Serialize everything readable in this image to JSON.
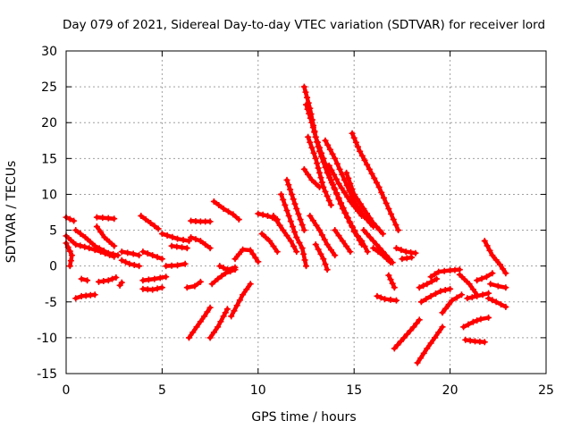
{
  "chart_data": {
    "type": "scatter",
    "title": "Day 079 of 2021, Sidereal Day-to-day VTEC variation (SDTVAR) for receiver lord",
    "xlabel": "GPS time / hours",
    "ylabel": "SDTVAR / TECUs",
    "xlim": [
      0,
      25
    ],
    "ylim": [
      -15,
      30
    ],
    "xticks": [
      "0",
      "5",
      "10",
      "15",
      "20",
      "25"
    ],
    "yticks": [
      "-15",
      "-10",
      "-5",
      "0",
      "5",
      "10",
      "15",
      "20",
      "25",
      "30"
    ],
    "grid": true,
    "marker": "+",
    "color": "#ff0000",
    "series": [
      {
        "name": "arc-01",
        "points": [
          [
            0.0,
            6.8
          ],
          [
            0.4,
            6.3
          ]
        ]
      },
      {
        "name": "arc-02",
        "points": [
          [
            0.0,
            4.2
          ],
          [
            0.5,
            3.0
          ],
          [
            1.2,
            2.5
          ],
          [
            1.8,
            2.0
          ],
          [
            2.5,
            1.3
          ]
        ]
      },
      {
        "name": "arc-03",
        "points": [
          [
            0.0,
            3.2
          ],
          [
            0.3,
            1.5
          ],
          [
            0.2,
            0.0
          ]
        ]
      },
      {
        "name": "arc-04",
        "points": [
          [
            0.5,
            5.0
          ],
          [
            1.0,
            4.0
          ],
          [
            1.5,
            2.8
          ],
          [
            2.2,
            1.8
          ],
          [
            2.7,
            1.5
          ]
        ]
      },
      {
        "name": "arc-05",
        "points": [
          [
            0.8,
            -1.8
          ],
          [
            1.1,
            -2.0
          ]
        ]
      },
      {
        "name": "arc-06",
        "points": [
          [
            0.5,
            -4.5
          ],
          [
            0.8,
            -4.2
          ],
          [
            1.5,
            -4.0
          ]
        ]
      },
      {
        "name": "arc-07",
        "points": [
          [
            1.6,
            6.8
          ],
          [
            2.5,
            6.6
          ]
        ]
      },
      {
        "name": "arc-08",
        "points": [
          [
            1.6,
            5.5
          ],
          [
            2.0,
            4.0
          ],
          [
            2.5,
            2.8
          ]
        ]
      },
      {
        "name": "arc-09",
        "points": [
          [
            1.7,
            -2.2
          ],
          [
            2.2,
            -2.0
          ],
          [
            2.6,
            -1.6
          ]
        ]
      },
      {
        "name": "arc-10",
        "points": [
          [
            2.9,
            2.0
          ],
          [
            3.5,
            1.7
          ],
          [
            3.8,
            1.5
          ]
        ]
      },
      {
        "name": "arc-11",
        "points": [
          [
            2.9,
            0.8
          ],
          [
            3.3,
            0.3
          ],
          [
            3.8,
            0.0
          ]
        ]
      },
      {
        "name": "arc-12",
        "points": [
          [
            2.8,
            -2.7
          ],
          [
            2.9,
            -2.3
          ]
        ]
      },
      {
        "name": "arc-13",
        "points": [
          [
            3.9,
            7.0
          ],
          [
            4.4,
            6.0
          ],
          [
            4.8,
            5.2
          ]
        ]
      },
      {
        "name": "arc-14",
        "points": [
          [
            4.0,
            2.0
          ],
          [
            4.5,
            1.5
          ],
          [
            5.0,
            1.0
          ]
        ]
      },
      {
        "name": "arc-15",
        "points": [
          [
            4.0,
            -2.0
          ],
          [
            4.6,
            -1.8
          ],
          [
            5.2,
            -1.5
          ]
        ]
      },
      {
        "name": "arc-16",
        "points": [
          [
            4.0,
            -3.2
          ],
          [
            4.5,
            -3.3
          ],
          [
            5.0,
            -3.0
          ]
        ]
      },
      {
        "name": "arc-17",
        "points": [
          [
            5.0,
            4.5
          ],
          [
            5.8,
            3.8
          ],
          [
            6.4,
            3.5
          ]
        ]
      },
      {
        "name": "arc-18",
        "points": [
          [
            5.5,
            2.8
          ],
          [
            6.3,
            2.5
          ]
        ]
      },
      {
        "name": "arc-19",
        "points": [
          [
            5.2,
            0.0
          ],
          [
            5.8,
            0.1
          ],
          [
            6.2,
            0.3
          ]
        ]
      },
      {
        "name": "arc-20",
        "points": [
          [
            6.3,
            -3.0
          ],
          [
            6.7,
            -2.8
          ],
          [
            7.0,
            -2.2
          ]
        ]
      },
      {
        "name": "arc-21",
        "points": [
          [
            6.4,
            -10.0
          ],
          [
            6.8,
            -8.5
          ],
          [
            7.2,
            -7.0
          ],
          [
            7.5,
            -5.8
          ]
        ]
      },
      {
        "name": "arc-22",
        "points": [
          [
            6.5,
            6.3
          ],
          [
            7.0,
            6.2
          ],
          [
            7.5,
            6.2
          ]
        ]
      },
      {
        "name": "arc-23",
        "points": [
          [
            6.5,
            4.0
          ],
          [
            7.0,
            3.5
          ],
          [
            7.5,
            2.5
          ]
        ]
      },
      {
        "name": "arc-24",
        "points": [
          [
            7.5,
            -10.0
          ],
          [
            7.9,
            -8.5
          ],
          [
            8.2,
            -7.0
          ],
          [
            8.4,
            -6.0
          ]
        ]
      },
      {
        "name": "arc-25",
        "points": [
          [
            7.6,
            -2.5
          ],
          [
            7.9,
            -1.8
          ],
          [
            8.3,
            -1.0
          ],
          [
            8.8,
            -0.5
          ]
        ]
      },
      {
        "name": "arc-26",
        "points": [
          [
            7.7,
            9.0
          ],
          [
            8.2,
            8.0
          ],
          [
            8.7,
            7.2
          ],
          [
            9.0,
            6.5
          ]
        ]
      },
      {
        "name": "arc-27",
        "points": [
          [
            8.0,
            0.0
          ],
          [
            8.4,
            -0.5
          ],
          [
            8.8,
            -0.2
          ]
        ]
      },
      {
        "name": "arc-28",
        "points": [
          [
            8.6,
            -7.0
          ],
          [
            8.9,
            -5.5
          ],
          [
            9.2,
            -4.0
          ],
          [
            9.6,
            -2.5
          ]
        ]
      },
      {
        "name": "arc-29",
        "points": [
          [
            8.8,
            1.0
          ],
          [
            9.2,
            2.3
          ],
          [
            9.6,
            2.2
          ],
          [
            10.0,
            0.6
          ]
        ]
      },
      {
        "name": "arc-30",
        "points": [
          [
            10.0,
            7.3
          ],
          [
            10.5,
            7.0
          ],
          [
            11.0,
            6.5
          ]
        ]
      },
      {
        "name": "arc-31",
        "points": [
          [
            10.2,
            4.5
          ],
          [
            10.6,
            3.5
          ],
          [
            11.0,
            2.0
          ]
        ]
      },
      {
        "name": "arc-32",
        "points": [
          [
            10.8,
            7.0
          ],
          [
            11.3,
            5.0
          ],
          [
            11.7,
            3.5
          ],
          [
            12.0,
            2.0
          ]
        ]
      },
      {
        "name": "arc-33",
        "points": [
          [
            11.2,
            10.0
          ],
          [
            11.6,
            7.0
          ],
          [
            12.0,
            4.0
          ],
          [
            12.3,
            2.5
          ],
          [
            12.5,
            0.0
          ]
        ]
      },
      {
        "name": "arc-34",
        "points": [
          [
            11.5,
            12.0
          ],
          [
            12.0,
            8.0
          ],
          [
            12.4,
            5.0
          ]
        ]
      },
      {
        "name": "arc-35",
        "points": [
          [
            12.4,
            25.0
          ],
          [
            12.7,
            22.0
          ],
          [
            13.0,
            18.0
          ],
          [
            13.4,
            15.0
          ],
          [
            13.8,
            12.0
          ],
          [
            14.4,
            8.0
          ],
          [
            15.0,
            5.0
          ]
        ]
      },
      {
        "name": "arc-36",
        "points": [
          [
            12.5,
            22.5
          ],
          [
            12.8,
            20.0
          ],
          [
            13.2,
            16.0
          ],
          [
            13.6,
            13.0
          ],
          [
            14.2,
            9.5
          ],
          [
            14.8,
            6.0
          ],
          [
            15.4,
            3.0
          ]
        ]
      },
      {
        "name": "arc-37",
        "points": [
          [
            12.6,
            18.0
          ],
          [
            13.0,
            15.0
          ],
          [
            13.4,
            11.0
          ],
          [
            13.8,
            8.5
          ]
        ]
      },
      {
        "name": "arc-38",
        "points": [
          [
            12.4,
            13.5
          ],
          [
            12.8,
            12.0
          ],
          [
            13.2,
            11.0
          ]
        ]
      },
      {
        "name": "arc-39",
        "points": [
          [
            12.7,
            7.0
          ],
          [
            13.2,
            5.0
          ],
          [
            13.6,
            3.0
          ],
          [
            14.0,
            1.5
          ]
        ]
      },
      {
        "name": "arc-40",
        "points": [
          [
            13.0,
            3.0
          ],
          [
            13.4,
            1.0
          ],
          [
            13.6,
            -0.5
          ]
        ]
      },
      {
        "name": "arc-41",
        "points": [
          [
            13.5,
            17.5
          ],
          [
            14.0,
            15.0
          ],
          [
            14.5,
            12.0
          ],
          [
            15.0,
            9.0
          ],
          [
            15.5,
            7.0
          ],
          [
            16.0,
            5.5
          ]
        ]
      },
      {
        "name": "arc-42",
        "points": [
          [
            13.7,
            14.0
          ],
          [
            14.2,
            11.5
          ],
          [
            14.8,
            9.0
          ],
          [
            15.4,
            7.0
          ]
        ]
      },
      {
        "name": "arc-43",
        "points": [
          [
            14.0,
            5.0
          ],
          [
            14.4,
            3.5
          ],
          [
            14.8,
            2.0
          ]
        ]
      },
      {
        "name": "arc-44",
        "points": [
          [
            14.6,
            13.0
          ],
          [
            15.0,
            10.0
          ],
          [
            15.5,
            8.0
          ],
          [
            16.0,
            6.0
          ],
          [
            16.5,
            4.5
          ]
        ]
      },
      {
        "name": "arc-45",
        "points": [
          [
            14.9,
            18.5
          ],
          [
            15.3,
            16.0
          ],
          [
            15.8,
            13.5
          ],
          [
            16.3,
            11.0
          ],
          [
            16.8,
            8.0
          ],
          [
            17.3,
            5.0
          ]
        ]
      },
      {
        "name": "arc-46",
        "points": [
          [
            15.0,
            4.8
          ],
          [
            15.4,
            3.5
          ],
          [
            15.7,
            2.0
          ]
        ]
      },
      {
        "name": "arc-47",
        "points": [
          [
            15.5,
            5.0
          ],
          [
            16.0,
            3.5
          ],
          [
            16.5,
            2.0
          ],
          [
            17.0,
            0.5
          ]
        ]
      },
      {
        "name": "arc-48",
        "points": [
          [
            16.0,
            2.5
          ],
          [
            16.5,
            1.5
          ],
          [
            16.9,
            0.5
          ]
        ]
      },
      {
        "name": "arc-49",
        "points": [
          [
            16.2,
            -4.2
          ],
          [
            16.6,
            -4.6
          ],
          [
            17.2,
            -4.8
          ]
        ]
      },
      {
        "name": "arc-50",
        "points": [
          [
            16.8,
            -1.3
          ],
          [
            17.1,
            -3.0
          ]
        ]
      },
      {
        "name": "arc-51",
        "points": [
          [
            17.1,
            -11.5
          ],
          [
            17.6,
            -10.0
          ],
          [
            18.1,
            -8.5
          ],
          [
            18.4,
            -7.5
          ]
        ]
      },
      {
        "name": "arc-52",
        "points": [
          [
            17.2,
            2.5
          ],
          [
            17.7,
            2.0
          ],
          [
            18.2,
            1.8
          ]
        ]
      },
      {
        "name": "arc-53",
        "points": [
          [
            17.5,
            1.0
          ],
          [
            18.0,
            1.2
          ]
        ]
      },
      {
        "name": "arc-54",
        "points": [
          [
            18.3,
            -13.5
          ],
          [
            18.8,
            -11.5
          ],
          [
            19.2,
            -10.0
          ],
          [
            19.6,
            -8.5
          ]
        ]
      },
      {
        "name": "arc-55",
        "points": [
          [
            18.4,
            -3.0
          ],
          [
            18.8,
            -2.5
          ],
          [
            19.3,
            -1.8
          ]
        ]
      },
      {
        "name": "arc-56",
        "points": [
          [
            18.5,
            -5.0
          ],
          [
            19.0,
            -4.2
          ],
          [
            19.5,
            -3.5
          ],
          [
            20.0,
            -3.2
          ]
        ]
      },
      {
        "name": "arc-57",
        "points": [
          [
            19.0,
            -1.5
          ],
          [
            19.4,
            -0.8
          ],
          [
            20.0,
            -0.6
          ],
          [
            20.5,
            -0.5
          ]
        ]
      },
      {
        "name": "arc-58",
        "points": [
          [
            19.6,
            -6.5
          ],
          [
            20.1,
            -4.8
          ],
          [
            20.6,
            -4.0
          ]
        ]
      },
      {
        "name": "arc-59",
        "points": [
          [
            20.5,
            -1.2
          ],
          [
            21.0,
            -2.5
          ],
          [
            21.4,
            -4.0
          ]
        ]
      },
      {
        "name": "arc-60",
        "points": [
          [
            20.7,
            -8.5
          ],
          [
            21.2,
            -7.8
          ],
          [
            21.6,
            -7.4
          ],
          [
            22.0,
            -7.2
          ]
        ]
      },
      {
        "name": "arc-61",
        "points": [
          [
            20.8,
            -10.3
          ],
          [
            21.3,
            -10.5
          ],
          [
            21.8,
            -10.6
          ]
        ]
      },
      {
        "name": "arc-62",
        "points": [
          [
            20.9,
            -4.5
          ],
          [
            21.4,
            -4.2
          ],
          [
            22.0,
            -3.8
          ]
        ]
      },
      {
        "name": "arc-63",
        "points": [
          [
            21.4,
            -2.0
          ],
          [
            21.9,
            -1.5
          ],
          [
            22.2,
            -1.0
          ]
        ]
      },
      {
        "name": "arc-64",
        "points": [
          [
            21.8,
            3.5
          ],
          [
            22.2,
            1.5
          ],
          [
            22.6,
            0.2
          ],
          [
            22.9,
            -1.0
          ]
        ]
      },
      {
        "name": "arc-65",
        "points": [
          [
            22.1,
            -2.5
          ],
          [
            22.5,
            -2.8
          ],
          [
            22.9,
            -3.0
          ]
        ]
      },
      {
        "name": "arc-66",
        "points": [
          [
            22.0,
            -4.5
          ],
          [
            22.4,
            -5.0
          ],
          [
            22.9,
            -5.7
          ]
        ]
      }
    ]
  }
}
